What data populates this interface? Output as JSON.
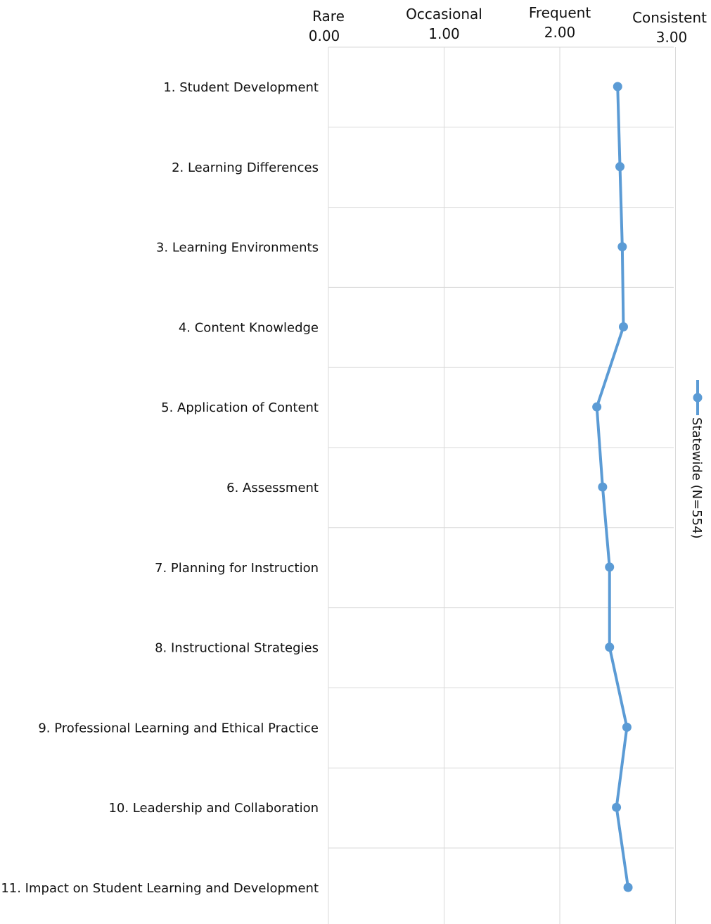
{
  "chart_data": {
    "type": "line",
    "orientation": "horizontal",
    "x_axis": {
      "position": "top",
      "range": [
        0,
        3
      ],
      "ticks": [
        {
          "value": 0,
          "label": "0.00",
          "name": "Rare"
        },
        {
          "value": 1,
          "label": "1.00",
          "name": "Occasional"
        },
        {
          "value": 2,
          "label": "2.00",
          "name": "Frequent"
        },
        {
          "value": 3,
          "label": "3.00",
          "name": "Consistent"
        }
      ]
    },
    "categories": [
      "1. Student Development",
      "2. Learning Differences",
      "3. Learning Environments",
      "4. Content Knowledge",
      "5. Application of Content",
      "6. Assessment",
      "7. Planning for Instruction",
      "8. Instructional Strategies",
      "9. Professional Learning and Ethical Practice",
      "10. Leadership and Collaboration",
      "11. Impact on Student Learning and Development"
    ],
    "series": [
      {
        "name": "Statewide (N=554)",
        "color": "#5b9bd5",
        "values": [
          2.5,
          2.52,
          2.54,
          2.55,
          2.32,
          2.37,
          2.43,
          2.43,
          2.58,
          2.49,
          2.59
        ]
      }
    ],
    "grid": true,
    "legend": "right, rotated"
  }
}
